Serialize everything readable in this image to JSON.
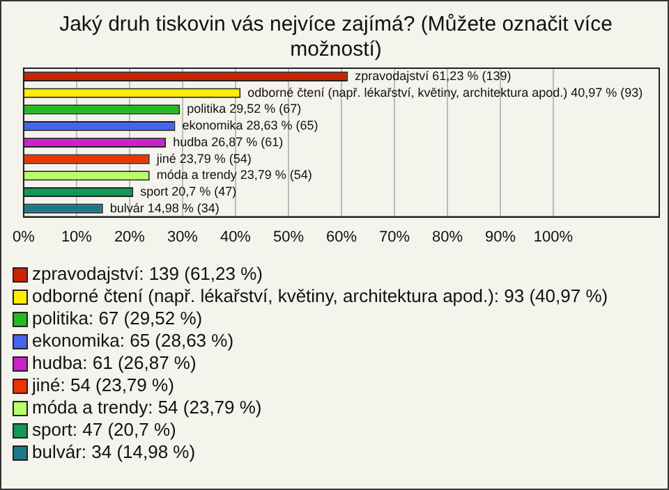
{
  "chart_data": {
    "type": "bar",
    "orientation": "horizontal",
    "title": "Jaký druh tiskovin vás nejvíce zajímá? (Můžete označit více možností)",
    "categories": [
      null,
      null,
      null,
      null,
      null,
      null,
      null,
      null,
      null
    ],
    "values": [
      61.23,
      40.97,
      29.52,
      28.63,
      26.87,
      23.79,
      23.79,
      20.7,
      14.98
    ],
    "colors": [
      "#cc2200",
      "#ffee00",
      "#22bb22",
      "#4466ee",
      "#cc22cc",
      "#ee3300",
      "#bbff66",
      "#119955",
      "#1a7a8a"
    ],
    "value_labels": [
      "zpravodajství 61,23 % (139)",
      "odborné čtení (např. lékařství, květiny, architektura apod.) 40,97 % (93)",
      "politika 29,52 % (67)",
      "ekonomika 28,63 % (65)",
      "hudba 26,87 % (61)",
      "jiné 23,79 % (54)",
      "móda a trendy 23,79 % (54)",
      "sport 20,7 % (47)",
      "bulvár 14,98 % (34)"
    ],
    "annotations": [
      "zpravodajství: 139 (61,23 %)",
      "odborné čtení (např. lékařství, květiny, architektura apod.): 93 (40,97 %)",
      "politika: 67 (29,52 %)",
      "ekonomika: 65 (28,63 %)",
      "hudba: 61 (26,87 %)",
      "jiné: 54 (23,79 %)",
      "móda a trendy: 54 (23,79 %)",
      "sport: 47 (20,7 %)",
      "bulvár: 34 (14,98 %)"
    ],
    "xlim": [
      0,
      120
    ],
    "xticks": [
      {
        "value": 0,
        "label": "0%"
      },
      {
        "value": 10,
        "label": "10%"
      },
      {
        "value": 20,
        "label": "20%"
      },
      {
        "value": 30,
        "label": "30%"
      },
      {
        "value": 40,
        "label": "40%"
      },
      {
        "value": 50,
        "label": "50%"
      },
      {
        "value": 60,
        "label": "60%"
      },
      {
        "value": 70,
        "label": "70%"
      },
      {
        "value": 80,
        "label": "80%"
      },
      {
        "value": 90,
        "label": "90%"
      },
      {
        "value": 100,
        "label": "100%"
      }
    ],
    "grid": "x",
    "tick_labels": "x"
  }
}
